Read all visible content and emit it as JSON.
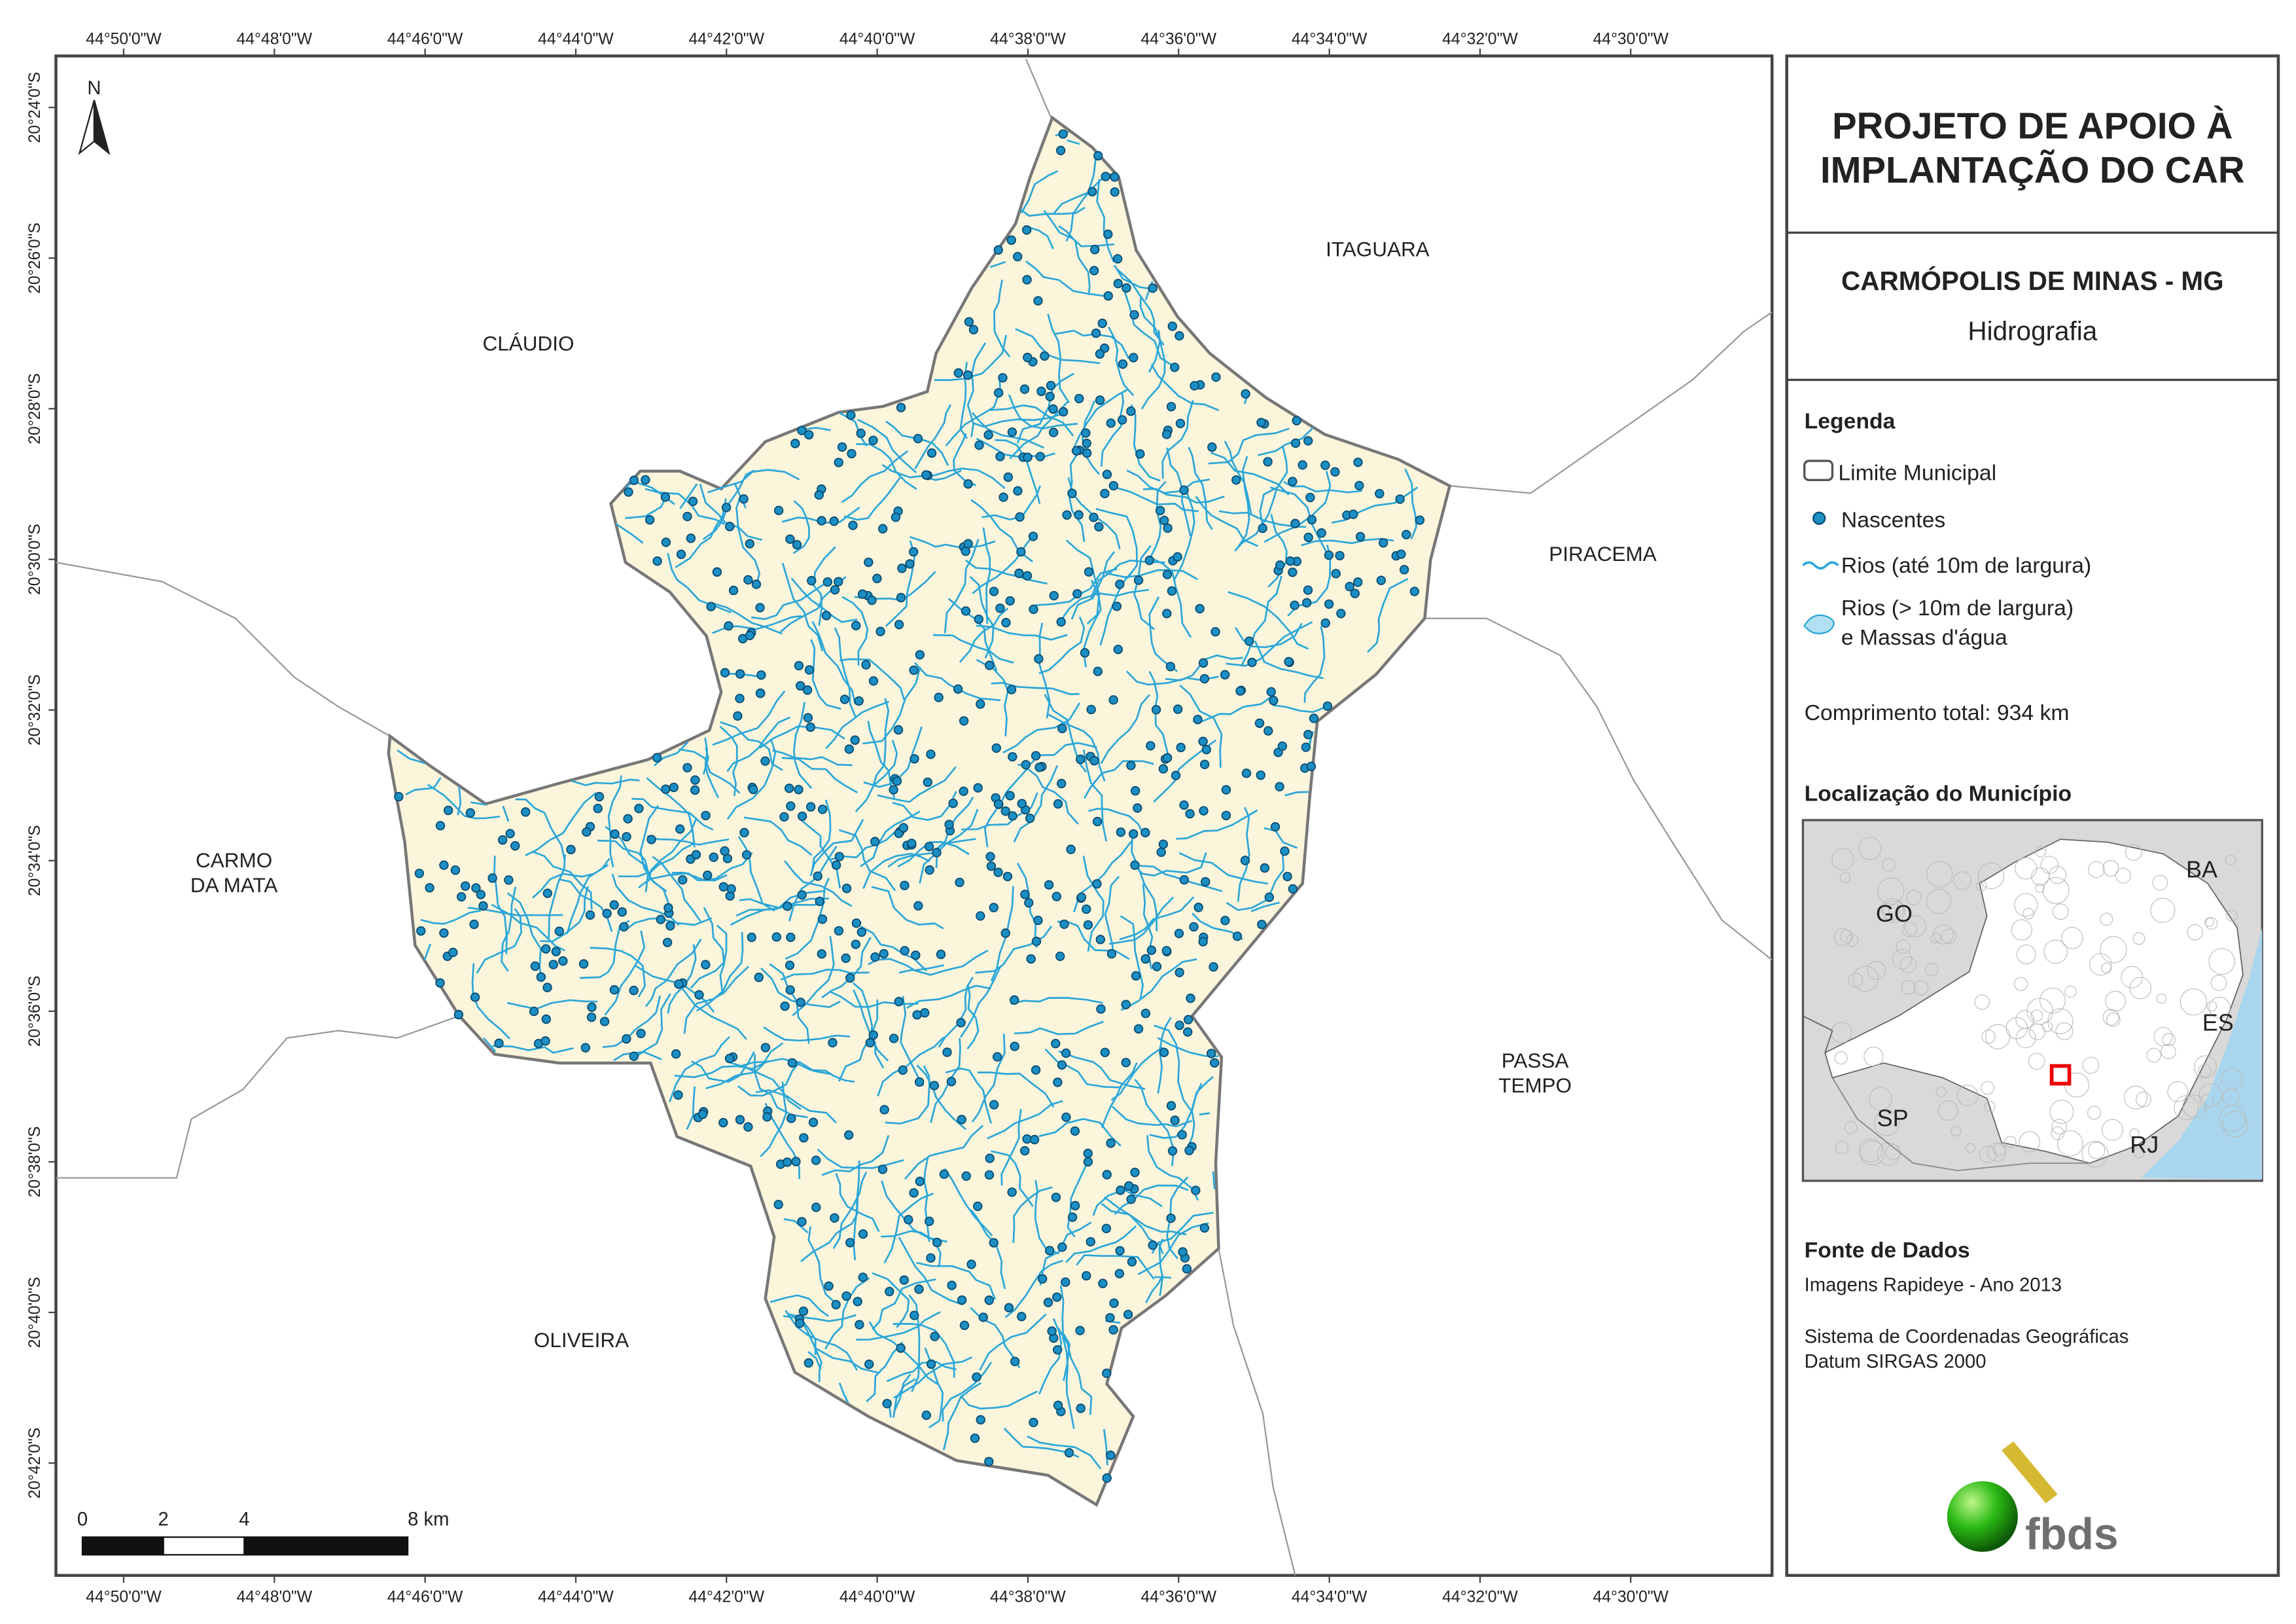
{
  "header": {
    "title_lines": [
      "PROJETO DE APOIO À",
      "IMPLANTAÇÃO DO CAR"
    ],
    "municipality": "CARMÓPOLIS DE MINAS - MG",
    "theme": "Hidrografia"
  },
  "legend": {
    "title": "Legenda",
    "items": [
      {
        "lines": [
          "Limite Municipal"
        ]
      },
      {
        "lines": [
          "Nascentes"
        ]
      },
      {
        "lines": [
          "Rios (até 10m de largura)"
        ]
      },
      {
        "lines": [
          "Rios (> 10m de largura)",
          "e Massas d'água"
        ]
      }
    ],
    "total_length": "Comprimento total: 934 km"
  },
  "location": {
    "title": "Localização do Município",
    "states": [
      "GO",
      "BA",
      "ES",
      "SP",
      "RJ"
    ]
  },
  "source": {
    "title": "Fonte de Dados",
    "lines": [
      "Imagens Rapideye - Ano 2013",
      "Sistema de Coordenadas Geográficas",
      "Datum SIRGAS 2000"
    ]
  },
  "logo": "fbds",
  "map": {
    "north": "N",
    "longitudes": [
      "44°50'0\"W",
      "44°48'0\"W",
      "44°46'0\"W",
      "44°44'0\"W",
      "44°42'0\"W",
      "44°40'0\"W",
      "44°38'0\"W",
      "44°36'0\"W",
      "44°34'0\"W",
      "44°32'0\"W",
      "44°30'0\"W"
    ],
    "latitudes": [
      "20°24'0\"S",
      "20°26'0\"S",
      "20°28'0\"S",
      "20°30'0\"S",
      "20°32'0\"S",
      "20°34'0\"S",
      "20°36'0\"S",
      "20°38'0\"S",
      "20°40'0\"S",
      "20°42'0\"S"
    ],
    "places": [
      {
        "lines": [
          "CLÁUDIO"
        ]
      },
      {
        "lines": [
          "ITAGUARA"
        ]
      },
      {
        "lines": [
          "PIRACEMA"
        ]
      },
      {
        "lines": [
          "CARMO",
          "DA MATA"
        ]
      },
      {
        "lines": [
          "PASSA",
          "TEMPO"
        ]
      },
      {
        "lines": [
          "OLIVEIRA"
        ]
      }
    ],
    "scale_bar": [
      "0",
      "2",
      "4",
      "8 km"
    ]
  }
}
